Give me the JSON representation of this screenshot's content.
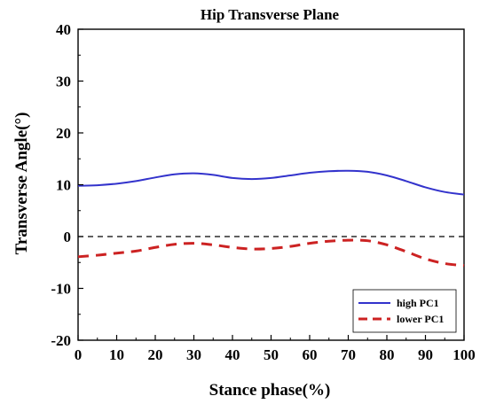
{
  "chart_data": {
    "type": "line",
    "title": "Hip Transverse Plane",
    "xlabel": "Stance phase(%)",
    "ylabel": "Transverse Angle(°)",
    "xlim": [
      0,
      100
    ],
    "ylim": [
      -20,
      40
    ],
    "x_ticks": [
      0,
      10,
      20,
      30,
      40,
      50,
      60,
      70,
      80,
      90,
      100
    ],
    "y_ticks": [
      -20,
      -10,
      0,
      10,
      20,
      30,
      40
    ],
    "x_tick_labels": [
      "0",
      "10",
      "20",
      "30",
      "40",
      "50",
      "60",
      "70",
      "80",
      "90",
      "100"
    ],
    "y_tick_labels": [
      "-20",
      "-10",
      "0",
      "10",
      "20",
      "30",
      "40"
    ],
    "grid": false,
    "legend_position": "bottom-right",
    "zero_line": {
      "y": 0,
      "style": "dashed",
      "color": "#000000"
    },
    "x": [
      0,
      5,
      10,
      15,
      20,
      25,
      30,
      35,
      40,
      45,
      50,
      55,
      60,
      65,
      70,
      75,
      80,
      85,
      90,
      95,
      100
    ],
    "series": [
      {
        "name": "high PC1",
        "color": "#3333cc",
        "style": "solid",
        "values": [
          9.8,
          9.9,
          10.2,
          10.7,
          11.4,
          12.0,
          12.2,
          11.9,
          11.3,
          11.1,
          11.3,
          11.8,
          12.3,
          12.6,
          12.7,
          12.5,
          11.8,
          10.7,
          9.5,
          8.6,
          8.1
        ]
      },
      {
        "name": "lower PC1",
        "color": "#cc2222",
        "style": "dashed",
        "values": [
          -3.9,
          -3.6,
          -3.2,
          -2.8,
          -2.1,
          -1.5,
          -1.3,
          -1.6,
          -2.1,
          -2.4,
          -2.3,
          -1.9,
          -1.3,
          -0.9,
          -0.7,
          -0.8,
          -1.6,
          -2.9,
          -4.3,
          -5.2,
          -5.6
        ]
      }
    ]
  }
}
